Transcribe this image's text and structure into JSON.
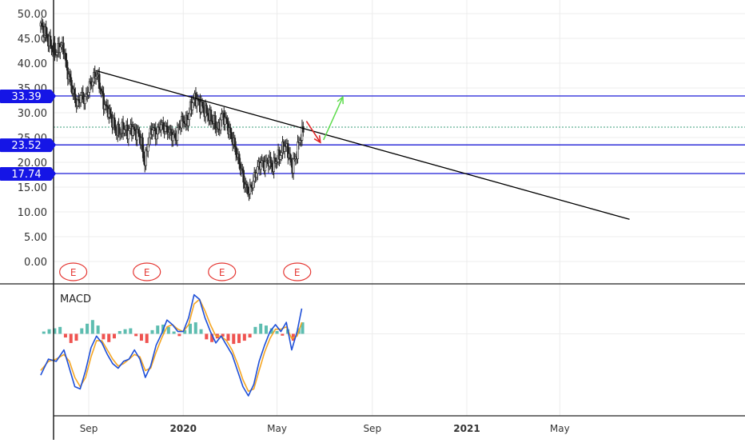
{
  "chart_data": [
    {
      "type": "candlestick",
      "title": "",
      "xlabel": "",
      "ylabel": "",
      "ylim": [
        -2.3,
        53.8
      ],
      "y_ticks": [
        0,
        5,
        10,
        15,
        20,
        25,
        30,
        35,
        40,
        45,
        50
      ],
      "y_tick_labels": [
        "0.00",
        "5.00",
        "10.00",
        "15.00",
        "20.00",
        "25.00",
        "30.00",
        "35.00",
        "40.00",
        "45.00",
        "50.00"
      ],
      "x_range": [
        "2019-07-01",
        "2021-09-30"
      ],
      "x_ticks": [
        {
          "date": "2019-09-01",
          "label": "Sep",
          "bold": false
        },
        {
          "date": "2020-01-01",
          "label": "2020",
          "bold": true
        },
        {
          "date": "2020-05-01",
          "label": "May",
          "bold": false
        },
        {
          "date": "2020-09-01",
          "label": "Sep",
          "bold": false
        },
        {
          "date": "2021-01-01",
          "label": "2021",
          "bold": true
        },
        {
          "date": "2021-05-01",
          "label": "May",
          "bold": false
        }
      ],
      "grid": true,
      "price_series": [
        [
          "2019-07-01",
          47.5
        ],
        [
          "2019-07-06",
          46.5
        ],
        [
          "2019-07-11",
          44.5
        ],
        [
          "2019-07-16",
          43.0
        ],
        [
          "2019-07-21",
          42.0
        ],
        [
          "2019-07-26",
          43.5
        ],
        [
          "2019-07-31",
          43.0
        ],
        [
          "2019-08-03",
          39.0
        ],
        [
          "2019-08-07",
          37.0
        ],
        [
          "2019-08-12",
          34.0
        ],
        [
          "2019-08-17",
          31.5
        ],
        [
          "2019-08-22",
          33.5
        ],
        [
          "2019-08-27",
          32.5
        ],
        [
          "2019-09-01",
          35.0
        ],
        [
          "2019-09-06",
          36.5
        ],
        [
          "2019-09-11",
          38.0
        ],
        [
          "2019-09-16",
          35.0
        ],
        [
          "2019-09-21",
          31.5
        ],
        [
          "2019-09-26",
          30.5
        ],
        [
          "2019-10-01",
          28.5
        ],
        [
          "2019-10-06",
          26.5
        ],
        [
          "2019-10-11",
          26.0
        ],
        [
          "2019-10-16",
          27.0
        ],
        [
          "2019-10-21",
          26.0
        ],
        [
          "2019-10-26",
          27.0
        ],
        [
          "2019-10-31",
          26.0
        ],
        [
          "2019-11-05",
          25.5
        ],
        [
          "2019-11-08",
          24.0
        ],
        [
          "2019-11-12",
          19.5
        ],
        [
          "2019-11-17",
          24.5
        ],
        [
          "2019-11-22",
          27.0
        ],
        [
          "2019-11-27",
          25.5
        ],
        [
          "2019-12-02",
          27.5
        ],
        [
          "2019-12-07",
          27.0
        ],
        [
          "2019-12-12",
          26.5
        ],
        [
          "2019-12-17",
          25.5
        ],
        [
          "2019-12-22",
          25.0
        ],
        [
          "2019-12-27",
          27.5
        ],
        [
          "2020-01-01",
          28.5
        ],
        [
          "2020-01-06",
          28.0
        ],
        [
          "2020-01-11",
          31.5
        ],
        [
          "2020-01-16",
          33.0
        ],
        [
          "2020-01-21",
          32.0
        ],
        [
          "2020-01-26",
          31.0
        ],
        [
          "2020-01-31",
          30.0
        ],
        [
          "2020-02-05",
          29.0
        ],
        [
          "2020-02-10",
          28.0
        ],
        [
          "2020-02-15",
          26.5
        ],
        [
          "2020-02-20",
          29.5
        ],
        [
          "2020-02-25",
          28.5
        ],
        [
          "2020-03-01",
          26.0
        ],
        [
          "2020-03-06",
          24.0
        ],
        [
          "2020-03-11",
          21.0
        ],
        [
          "2020-03-16",
          18.5
        ],
        [
          "2020-03-21",
          15.0
        ],
        [
          "2020-03-26",
          14.0
        ],
        [
          "2020-03-31",
          16.0
        ],
        [
          "2020-04-05",
          18.5
        ],
        [
          "2020-04-10",
          20.0
        ],
        [
          "2020-04-15",
          19.5
        ],
        [
          "2020-04-20",
          20.5
        ],
        [
          "2020-04-25",
          19.0
        ],
        [
          "2020-04-30",
          20.5
        ],
        [
          "2020-05-05",
          21.5
        ],
        [
          "2020-05-10",
          23.5
        ],
        [
          "2020-05-15",
          22.5
        ],
        [
          "2020-05-20",
          19.0
        ],
        [
          "2020-05-25",
          21.0
        ],
        [
          "2020-05-30",
          24.5
        ],
        [
          "2020-06-04",
          26.5
        ]
      ],
      "horizontal_levels": [
        {
          "value": 33.39,
          "label": "33.39",
          "color": "#1c1cd6"
        },
        {
          "value": 23.52,
          "label": "23.52",
          "color": "#1c1cd6"
        },
        {
          "value": 17.74,
          "label": "17.74",
          "color": "#1c1cd6"
        }
      ],
      "last_price_line": {
        "value": 27.1,
        "color": "#3a9e7a",
        "style": "dotted"
      },
      "trend_line": {
        "from": [
          "2019-09-10",
          38.5
        ],
        "to": [
          "2021-07-30",
          8.5
        ],
        "color": "#000000"
      },
      "arrows": [
        {
          "from": [
            "2020-06-08",
            28.3
          ],
          "to": [
            "2020-06-26",
            24.0
          ],
          "color": "#dd2222"
        },
        {
          "from": [
            "2020-06-30",
            24.5
          ],
          "to": [
            "2020-07-25",
            33.2
          ],
          "color": "#5ddc4c"
        }
      ],
      "earnings_markers": [
        {
          "date": "2019-08-12",
          "label": "E"
        },
        {
          "date": "2019-11-15",
          "label": "E"
        },
        {
          "date": "2020-02-20",
          "label": "E"
        },
        {
          "date": "2020-05-27",
          "label": "E"
        }
      ]
    },
    {
      "type": "line",
      "title": "MACD",
      "ylim": [
        -1.75,
        1.0
      ],
      "zero_line": true,
      "series": [
        {
          "color": "#1e4fd8",
          "points": [
            [
              "2019-07-01",
              -0.9
            ],
            [
              "2019-07-11",
              -0.55
            ],
            [
              "2019-07-21",
              -0.6
            ],
            [
              "2019-07-31",
              -0.35
            ],
            [
              "2019-08-07",
              -0.75
            ],
            [
              "2019-08-14",
              -1.15
            ],
            [
              "2019-08-21",
              -1.2
            ],
            [
              "2019-08-28",
              -0.8
            ],
            [
              "2019-09-04",
              -0.3
            ],
            [
              "2019-09-11",
              -0.05
            ],
            [
              "2019-09-18",
              -0.2
            ],
            [
              "2019-09-25",
              -0.45
            ],
            [
              "2019-10-02",
              -0.65
            ],
            [
              "2019-10-09",
              -0.75
            ],
            [
              "2019-10-16",
              -0.6
            ],
            [
              "2019-10-23",
              -0.55
            ],
            [
              "2019-10-30",
              -0.35
            ],
            [
              "2019-11-06",
              -0.55
            ],
            [
              "2019-11-13",
              -0.95
            ],
            [
              "2019-11-20",
              -0.7
            ],
            [
              "2019-11-27",
              -0.25
            ],
            [
              "2019-12-04",
              0.0
            ],
            [
              "2019-12-11",
              0.3
            ],
            [
              "2019-12-18",
              0.2
            ],
            [
              "2019-12-25",
              0.05
            ],
            [
              "2020-01-01",
              0.05
            ],
            [
              "2020-01-08",
              0.35
            ],
            [
              "2020-01-15",
              0.85
            ],
            [
              "2020-01-22",
              0.75
            ],
            [
              "2020-01-29",
              0.35
            ],
            [
              "2020-02-05",
              0.05
            ],
            [
              "2020-02-12",
              -0.2
            ],
            [
              "2020-02-19",
              -0.05
            ],
            [
              "2020-02-26",
              -0.25
            ],
            [
              "2020-03-04",
              -0.45
            ],
            [
              "2020-03-11",
              -0.8
            ],
            [
              "2020-03-18",
              -1.15
            ],
            [
              "2020-03-25",
              -1.35
            ],
            [
              "2020-04-01",
              -1.1
            ],
            [
              "2020-04-08",
              -0.6
            ],
            [
              "2020-04-15",
              -0.25
            ],
            [
              "2020-04-22",
              0.05
            ],
            [
              "2020-04-29",
              0.2
            ],
            [
              "2020-05-06",
              0.05
            ],
            [
              "2020-05-13",
              0.25
            ],
            [
              "2020-05-20",
              -0.35
            ],
            [
              "2020-05-27",
              0.05
            ],
            [
              "2020-06-02",
              0.55
            ]
          ]
        },
        {
          "color": "#f5a623",
          "points": [
            [
              "2019-07-01",
              -0.8
            ],
            [
              "2019-07-11",
              -0.6
            ],
            [
              "2019-07-21",
              -0.55
            ],
            [
              "2019-07-31",
              -0.45
            ],
            [
              "2019-08-07",
              -0.6
            ],
            [
              "2019-08-14",
              -0.95
            ],
            [
              "2019-08-21",
              -1.15
            ],
            [
              "2019-08-28",
              -0.95
            ],
            [
              "2019-09-04",
              -0.5
            ],
            [
              "2019-09-11",
              -0.15
            ],
            [
              "2019-09-18",
              -0.15
            ],
            [
              "2019-09-25",
              -0.35
            ],
            [
              "2019-10-02",
              -0.55
            ],
            [
              "2019-10-09",
              -0.7
            ],
            [
              "2019-10-16",
              -0.65
            ],
            [
              "2019-10-23",
              -0.55
            ],
            [
              "2019-10-30",
              -0.45
            ],
            [
              "2019-11-06",
              -0.5
            ],
            [
              "2019-11-13",
              -0.8
            ],
            [
              "2019-11-20",
              -0.75
            ],
            [
              "2019-11-27",
              -0.4
            ],
            [
              "2019-12-04",
              -0.1
            ],
            [
              "2019-12-11",
              0.15
            ],
            [
              "2019-12-18",
              0.2
            ],
            [
              "2019-12-25",
              0.1
            ],
            [
              "2020-01-01",
              0.05
            ],
            [
              "2020-01-08",
              0.2
            ],
            [
              "2020-01-15",
              0.65
            ],
            [
              "2020-01-22",
              0.75
            ],
            [
              "2020-01-29",
              0.5
            ],
            [
              "2020-02-05",
              0.2
            ],
            [
              "2020-02-12",
              -0.05
            ],
            [
              "2020-02-19",
              -0.05
            ],
            [
              "2020-02-26",
              -0.15
            ],
            [
              "2020-03-04",
              -0.35
            ],
            [
              "2020-03-11",
              -0.65
            ],
            [
              "2020-03-18",
              -1.0
            ],
            [
              "2020-03-25",
              -1.25
            ],
            [
              "2020-04-01",
              -1.2
            ],
            [
              "2020-04-08",
              -0.8
            ],
            [
              "2020-04-15",
              -0.4
            ],
            [
              "2020-04-22",
              -0.1
            ],
            [
              "2020-04-29",
              0.1
            ],
            [
              "2020-05-06",
              0.1
            ],
            [
              "2020-05-13",
              0.15
            ],
            [
              "2020-05-20",
              -0.1
            ],
            [
              "2020-05-27",
              -0.05
            ],
            [
              "2020-06-02",
              0.25
            ]
          ]
        }
      ],
      "histogram": {
        "positive_color": "#5dbdb0",
        "negative_color": "#ef5350",
        "bars": [
          [
            "2019-07-05",
            0.05
          ],
          [
            "2019-07-12",
            0.1
          ],
          [
            "2019-07-19",
            0.12
          ],
          [
            "2019-07-26",
            0.15
          ],
          [
            "2019-08-02",
            -0.08
          ],
          [
            "2019-08-09",
            -0.2
          ],
          [
            "2019-08-16",
            -0.15
          ],
          [
            "2019-08-23",
            0.12
          ],
          [
            "2019-08-30",
            0.22
          ],
          [
            "2019-09-06",
            0.3
          ],
          [
            "2019-09-13",
            0.18
          ],
          [
            "2019-09-20",
            -0.12
          ],
          [
            "2019-09-27",
            -0.18
          ],
          [
            "2019-10-04",
            -0.1
          ],
          [
            "2019-10-11",
            0.06
          ],
          [
            "2019-10-18",
            0.1
          ],
          [
            "2019-10-25",
            0.12
          ],
          [
            "2019-11-01",
            -0.05
          ],
          [
            "2019-11-08",
            -0.15
          ],
          [
            "2019-11-15",
            -0.2
          ],
          [
            "2019-11-22",
            0.08
          ],
          [
            "2019-11-29",
            0.18
          ],
          [
            "2019-12-06",
            0.2
          ],
          [
            "2019-12-13",
            0.15
          ],
          [
            "2019-12-20",
            0.05
          ],
          [
            "2019-12-27",
            -0.05
          ],
          [
            "2020-01-03",
            0.08
          ],
          [
            "2020-01-10",
            0.22
          ],
          [
            "2020-01-17",
            0.25
          ],
          [
            "2020-01-24",
            0.1
          ],
          [
            "2020-01-31",
            -0.12
          ],
          [
            "2020-02-07",
            -0.18
          ],
          [
            "2020-02-14",
            -0.1
          ],
          [
            "2020-02-21",
            -0.06
          ],
          [
            "2020-02-28",
            -0.15
          ],
          [
            "2020-03-06",
            -0.22
          ],
          [
            "2020-03-13",
            -0.2
          ],
          [
            "2020-03-20",
            -0.15
          ],
          [
            "2020-03-27",
            -0.08
          ],
          [
            "2020-04-03",
            0.15
          ],
          [
            "2020-04-10",
            0.22
          ],
          [
            "2020-04-17",
            0.18
          ],
          [
            "2020-04-24",
            0.12
          ],
          [
            "2020-05-01",
            0.06
          ],
          [
            "2020-05-08",
            -0.04
          ],
          [
            "2020-05-15",
            0.1
          ],
          [
            "2020-05-22",
            -0.15
          ],
          [
            "2020-05-29",
            0.12
          ],
          [
            "2020-06-03",
            0.25
          ]
        ]
      }
    }
  ]
}
